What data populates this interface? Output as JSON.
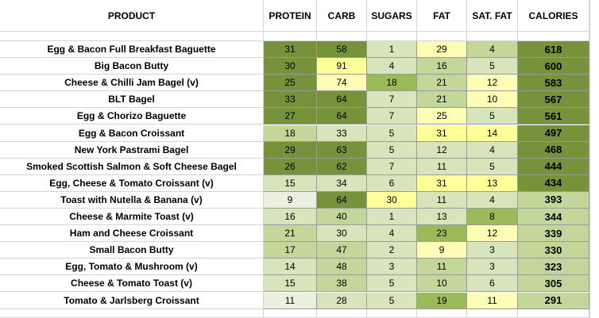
{
  "headers": [
    "PRODUCT",
    "PROTEIN",
    "CARB",
    "SUGARS",
    "FAT",
    "SAT. FAT",
    "CALORIES"
  ],
  "rows": [
    {
      "product": "Egg & Bacon Full Breakfast Baguette",
      "values": [
        31,
        58,
        1,
        29,
        4,
        618
      ]
    },
    {
      "product": "Big Bacon Butty",
      "values": [
        30,
        91,
        4,
        16,
        5,
        600
      ]
    },
    {
      "product": "Cheese & Chilli Jam Bagel (v)",
      "values": [
        25,
        74,
        18,
        21,
        12,
        583
      ]
    },
    {
      "product": "BLT Bagel",
      "values": [
        33,
        64,
        7,
        21,
        10,
        567
      ]
    },
    {
      "product": "Egg & Chorizo Baguette",
      "values": [
        27,
        64,
        7,
        25,
        5,
        561
      ]
    },
    {
      "product": "Egg & Bacon Croissant",
      "values": [
        18,
        33,
        5,
        31,
        14,
        497
      ]
    },
    {
      "product": "New York Pastrami Bagel",
      "values": [
        29,
        63,
        5,
        12,
        4,
        468
      ]
    },
    {
      "product": "Smoked Scottish Salmon & Soft Cheese Bagel",
      "values": [
        26,
        62,
        7,
        11,
        5,
        444
      ]
    },
    {
      "product": "Egg, Cheese & Tomato Croissant (v)",
      "values": [
        15,
        34,
        6,
        31,
        13,
        434
      ]
    },
    {
      "product": "Toast with Nutella & Banana (v)",
      "values": [
        9,
        64,
        30,
        11,
        4,
        393
      ]
    },
    {
      "product": "Cheese & Marmite Toast (v)",
      "values": [
        16,
        40,
        1,
        13,
        8,
        344
      ]
    },
    {
      "product": "Ham and Cheese Croissant",
      "values": [
        21,
        30,
        4,
        23,
        12,
        339
      ]
    },
    {
      "product": "Small Bacon Butty",
      "values": [
        17,
        47,
        2,
        9,
        3,
        330
      ]
    },
    {
      "product": "Egg, Tomato & Mushroom (v)",
      "values": [
        14,
        48,
        3,
        11,
        3,
        323
      ]
    },
    {
      "product": "Cheese & Tomato Toast (v)",
      "values": [
        15,
        38,
        5,
        10,
        6,
        305
      ]
    },
    {
      "product": "Tomato & Jarlsberg Croissant",
      "values": [
        11,
        28,
        5,
        19,
        11,
        291
      ]
    }
  ],
  "colors": {
    "dark_green": "#76933c",
    "mid_green": "#9bbb59",
    "light_green": "#c4d79b",
    "pale_green": "#d8e4bc",
    "pale_yellow": "#ebf1de",
    "yellow": "#ffff99",
    "light_yellow": "#fdfdb5",
    "grid": "#d4d4d4"
  }
}
